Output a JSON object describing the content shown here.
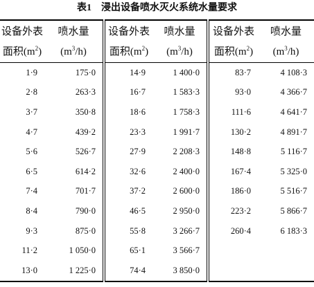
{
  "title": "表1　浸出设备喷水灭火系统水量要求",
  "header": [
    {
      "line1": "设备外表",
      "line2": "面积(m",
      "sup": "2",
      "tail": ")"
    },
    {
      "line1": "喷水量",
      "line2": "(m",
      "sup": "3",
      "tail": "/h)"
    },
    {
      "line1": "设备外表",
      "line2": "面积(m",
      "sup": "2",
      "tail": ")"
    },
    {
      "line1": "喷水量",
      "line2": "(m",
      "sup": "3",
      "tail": "/h)"
    },
    {
      "line1": "设备外表",
      "line2": "面积(m",
      "sup": "2",
      "tail": ")"
    },
    {
      "line1": "喷水量",
      "line2": "(m",
      "sup": "3",
      "tail": "/h)"
    }
  ],
  "rows": [
    [
      "1·9",
      "175·0",
      "14·9",
      "1 400·0",
      "83·7",
      "4 108·3"
    ],
    [
      "2·8",
      "263·3",
      "16·7",
      "1 583·3",
      "93·0",
      "4 366·7"
    ],
    [
      "3·7",
      "350·8",
      "18·6",
      "1 758·3",
      "111·6",
      "4 641·7"
    ],
    [
      "4·7",
      "439·2",
      "23·3",
      "1 991·7",
      "130·2",
      "4 891·7"
    ],
    [
      "5·6",
      "526·7",
      "27·9",
      "2 208·3",
      "148·8",
      "5 116·7"
    ],
    [
      "6·5",
      "614·2",
      "32·6",
      "2 400·0",
      "167·4",
      "5 325·0"
    ],
    [
      "7·4",
      "701·7",
      "37·2",
      "2 600·0",
      "186·0",
      "5 516·7"
    ],
    [
      "8·4",
      "790·0",
      "46·5",
      "2 950·0",
      "223·2",
      "5 866·7"
    ],
    [
      "9·3",
      "875·0",
      "55·8",
      "3 266·7",
      "260·4",
      "6 183·3"
    ],
    [
      "11·2",
      "1 050·0",
      "65·1",
      "3 566·7"
    ],
    [
      "13·0",
      "1 225·0",
      "74·4",
      "3 850·0"
    ]
  ]
}
